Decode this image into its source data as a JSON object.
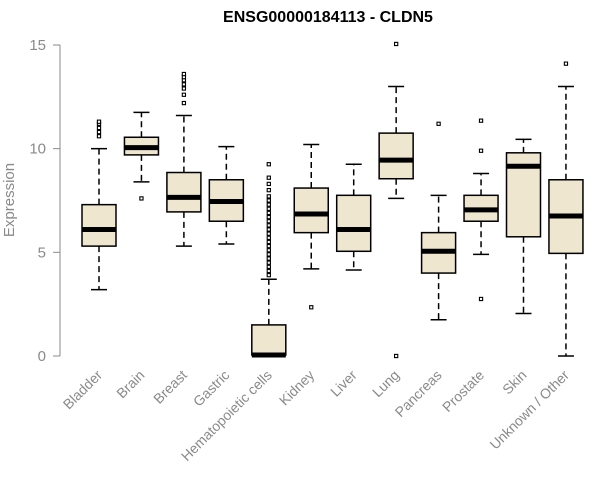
{
  "chart_data": {
    "type": "boxplot",
    "title": "ENSG00000184113 - CLDN5",
    "ylabel": "Expression",
    "xlabel": "",
    "ylim": [
      0,
      15
    ],
    "yticks": [
      0,
      5,
      10,
      15
    ],
    "categories": [
      "Bladder",
      "Brain",
      "Breast",
      "Gastric",
      "Hematopoietic cells",
      "Kidney",
      "Liver",
      "Lung",
      "Pancreas",
      "Prostate",
      "Skin",
      "Unknown / Other"
    ],
    "series": [
      {
        "q1": 5.3,
        "median": 6.1,
        "q3": 7.3,
        "whisker_low": 3.2,
        "whisker_high": 10.0,
        "outliers": [
          10.6,
          10.8,
          11.0,
          11.2,
          11.3
        ]
      },
      {
        "q1": 9.7,
        "median": 10.05,
        "q3": 10.55,
        "whisker_low": 8.4,
        "whisker_high": 11.75,
        "outliers": [
          7.6
        ]
      },
      {
        "q1": 6.95,
        "median": 7.65,
        "q3": 8.85,
        "whisker_low": 5.3,
        "whisker_high": 11.6,
        "outliers": [
          12.2,
          12.6,
          12.9,
          13.1,
          13.3,
          13.45,
          13.6
        ]
      },
      {
        "q1": 6.5,
        "median": 7.45,
        "q3": 8.5,
        "whisker_low": 5.4,
        "whisker_high": 10.1,
        "outliers": []
      },
      {
        "q1": 0.05,
        "median": 0.05,
        "q3": 1.5,
        "whisker_low": 0.0,
        "whisker_high": 3.7,
        "outliers": [
          3.9,
          4.1,
          4.3,
          4.5,
          4.7,
          4.9,
          5.1,
          5.3,
          5.5,
          5.7,
          5.9,
          6.1,
          6.3,
          6.5,
          6.7,
          6.9,
          7.1,
          7.3,
          7.5,
          7.7,
          8.0,
          8.3,
          8.6,
          9.25
        ]
      },
      {
        "q1": 5.95,
        "median": 6.85,
        "q3": 8.1,
        "whisker_low": 4.2,
        "whisker_high": 10.2,
        "outliers": [
          2.35
        ]
      },
      {
        "q1": 5.05,
        "median": 6.1,
        "q3": 7.75,
        "whisker_low": 4.15,
        "whisker_high": 9.25,
        "outliers": []
      },
      {
        "q1": 8.55,
        "median": 9.45,
        "q3": 10.75,
        "whisker_low": 7.6,
        "whisker_high": 13.0,
        "outliers": [
          15.05,
          0.0
        ]
      },
      {
        "q1": 4.0,
        "median": 5.05,
        "q3": 5.95,
        "whisker_low": 1.75,
        "whisker_high": 7.75,
        "outliers": [
          11.2
        ]
      },
      {
        "q1": 6.5,
        "median": 7.05,
        "q3": 7.75,
        "whisker_low": 4.9,
        "whisker_high": 8.8,
        "outliers": [
          9.9,
          11.35,
          2.75
        ]
      },
      {
        "q1": 5.75,
        "median": 9.15,
        "q3": 9.8,
        "whisker_low": 2.05,
        "whisker_high": 10.45,
        "outliers": []
      },
      {
        "q1": 4.95,
        "median": 6.75,
        "q3": 8.5,
        "whisker_low": 0.0,
        "whisker_high": 13.0,
        "outliers": [
          14.1
        ]
      }
    ],
    "box_fill": "#efe6cf",
    "box_stroke": "#000000",
    "median_color": "#000000",
    "axis_color": "#8a8a8a",
    "grid": false,
    "legend": "none"
  }
}
